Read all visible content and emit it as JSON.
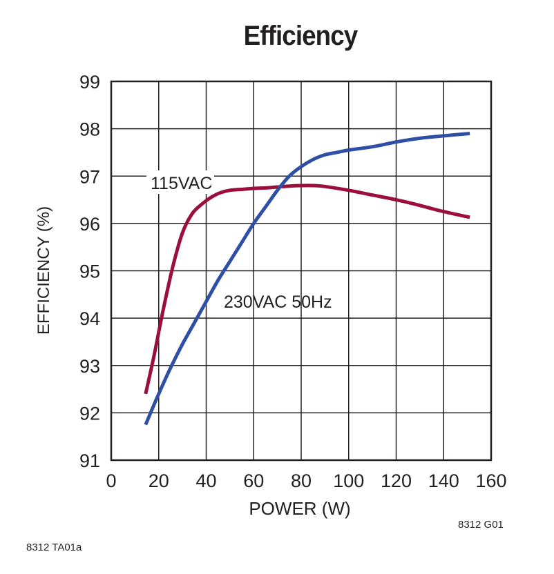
{
  "chart_data": {
    "type": "line",
    "title": "Efficiency",
    "xlabel": "POWER (W)",
    "ylabel": "EFFICIENCY (%)",
    "xlim": [
      0,
      160
    ],
    "ylim": [
      91,
      99
    ],
    "xticks": [
      0,
      20,
      40,
      60,
      80,
      100,
      120,
      140,
      160
    ],
    "yticks": [
      91,
      92,
      93,
      94,
      95,
      96,
      97,
      98,
      99
    ],
    "grid": true,
    "series": [
      {
        "name": "115VAC",
        "color": "#9b0f3c",
        "x": [
          14.5,
          18,
          22,
          26,
          30,
          34,
          38,
          42,
          46,
          50,
          55,
          60,
          65,
          70,
          75,
          80,
          85,
          90,
          100,
          110,
          120,
          130,
          140,
          151
        ],
        "y": [
          92.4,
          93.2,
          94.2,
          95.1,
          95.8,
          96.2,
          96.4,
          96.55,
          96.65,
          96.7,
          96.72,
          96.74,
          96.75,
          96.77,
          96.79,
          96.8,
          96.8,
          96.78,
          96.7,
          96.6,
          96.5,
          96.38,
          96.25,
          96.13
        ]
      },
      {
        "name": "230VAC 50Hz",
        "color": "#2e4fa3",
        "x": [
          14.5,
          20,
          25,
          30,
          35,
          40,
          45,
          50,
          55,
          60,
          65,
          70,
          75,
          80,
          85,
          90,
          95,
          100,
          110,
          120,
          130,
          140,
          151
        ],
        "y": [
          91.75,
          92.4,
          92.95,
          93.45,
          93.9,
          94.35,
          94.8,
          95.2,
          95.6,
          96.0,
          96.35,
          96.7,
          97.0,
          97.2,
          97.35,
          97.45,
          97.5,
          97.55,
          97.62,
          97.72,
          97.8,
          97.85,
          97.9
        ]
      }
    ],
    "annotations": [
      {
        "text": "115VAC",
        "series": "115VAC"
      },
      {
        "text": "230VAC 50Hz",
        "series": "230VAC 50Hz"
      }
    ]
  },
  "figure_id": "8312 G01",
  "page_id": "8312 TA01a"
}
